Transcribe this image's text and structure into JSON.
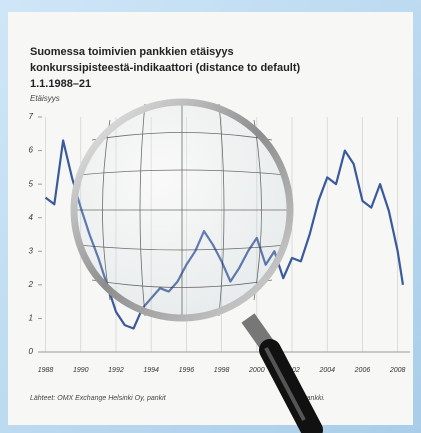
{
  "chart_data": {
    "type": "line",
    "title": "Suomessa toimivien pankkien etäisyys",
    "title_line2": "konkurssipisteestä-indikaattori (distance to default)",
    "title_line3": "1.1.1988–21",
    "subtitle": "Etäisyys",
    "source": "Lähteet: OMX Exchange Helsinki Oy, pankit",
    "source_end": "Pankki.",
    "x": [
      1988.0,
      1988.5,
      1989.0,
      1989.5,
      1990.0,
      1990.5,
      1991.0,
      1991.5,
      1992.0,
      1992.5,
      1993.0,
      1993.5,
      1994.0,
      1994.5,
      1995.0,
      1995.5,
      1996.0,
      1996.5,
      1997.0,
      1997.5,
      1998.0,
      1998.5,
      1999.0,
      1999.5,
      2000.0,
      2000.5,
      2001.0,
      2001.5,
      2002.0,
      2002.5,
      2003.0,
      2003.5,
      2004.0,
      2004.5,
      2005.0,
      2005.5,
      2006.0,
      2006.5,
      2007.0,
      2007.5,
      2008.0,
      2008.3
    ],
    "series": [
      {
        "color": "#3a5a9c",
        "values": [
          4.6,
          4.4,
          6.3,
          5.2,
          4.3,
          3.5,
          2.8,
          2.0,
          1.2,
          0.8,
          0.7,
          1.3,
          1.6,
          1.9,
          1.8,
          2.1,
          2.6,
          3.0,
          3.6,
          3.2,
          2.7,
          2.1,
          2.5,
          3.0,
          3.4,
          2.6,
          3.0,
          2.2,
          2.8,
          2.7,
          3.5,
          4.5,
          5.2,
          5.0,
          6.0,
          5.6,
          4.5,
          4.3,
          5.0,
          4.2,
          3.0,
          2.0
        ]
      }
    ],
    "xlim": [
      1987.8,
      2008.7
    ],
    "xticks": [
      1988,
      1990,
      1992,
      1994,
      1996,
      1998,
      2000,
      2002,
      2004,
      2006,
      2008
    ],
    "ylim": [
      0,
      7
    ],
    "yticks": [
      0,
      1,
      2,
      3,
      4,
      5,
      6,
      7
    ],
    "grid": true
  }
}
